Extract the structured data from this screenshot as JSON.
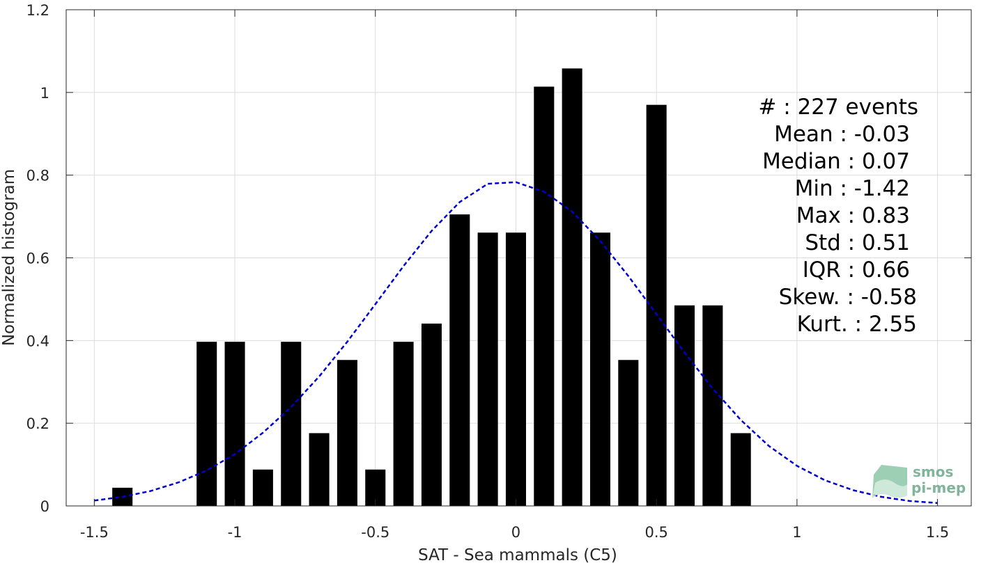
{
  "chart_data": {
    "type": "bar",
    "xlabel": "SAT - Sea mammals (C5)",
    "ylabel": "Normalized histogram",
    "xlim": [
      -1.6,
      1.62
    ],
    "ylim": [
      0,
      1.2
    ],
    "xticks": [
      -1.5,
      -1,
      -0.5,
      0,
      0.5,
      1,
      1.5
    ],
    "xtick_labels": [
      "-1.5",
      "-1",
      "-0.5",
      "0",
      "0.5",
      "1",
      "1.5"
    ],
    "yticks": [
      0,
      0.2,
      0.4,
      0.6,
      0.8,
      1,
      1.2
    ],
    "ytick_labels": [
      "0",
      "0.2",
      "0.4",
      "0.6",
      "0.8",
      "1",
      "1.2"
    ],
    "grid": true,
    "bar_width": 0.072,
    "bars": [
      {
        "x": -1.4,
        "value": 0.044
      },
      {
        "x": -1.1,
        "value": 0.397
      },
      {
        "x": -1.0,
        "value": 0.397
      },
      {
        "x": -0.9,
        "value": 0.088
      },
      {
        "x": -0.8,
        "value": 0.397
      },
      {
        "x": -0.7,
        "value": 0.176
      },
      {
        "x": -0.6,
        "value": 0.353
      },
      {
        "x": -0.5,
        "value": 0.088
      },
      {
        "x": -0.4,
        "value": 0.397
      },
      {
        "x": -0.3,
        "value": 0.441
      },
      {
        "x": -0.2,
        "value": 0.705
      },
      {
        "x": -0.1,
        "value": 0.661
      },
      {
        "x": 0.0,
        "value": 0.661
      },
      {
        "x": 0.1,
        "value": 1.014
      },
      {
        "x": 0.2,
        "value": 1.058
      },
      {
        "x": 0.3,
        "value": 0.661
      },
      {
        "x": 0.4,
        "value": 0.353
      },
      {
        "x": 0.5,
        "value": 0.97
      },
      {
        "x": 0.6,
        "value": 0.485
      },
      {
        "x": 0.7,
        "value": 0.485
      },
      {
        "x": 0.8,
        "value": 0.176
      }
    ],
    "fit_curve": {
      "style": "dashed",
      "color": "#0000cc",
      "x": [
        -1.5,
        -1.4,
        -1.3,
        -1.2,
        -1.1,
        -1.0,
        -0.9,
        -0.8,
        -0.7,
        -0.6,
        -0.5,
        -0.4,
        -0.3,
        -0.2,
        -0.1,
        0.0,
        0.1,
        0.2,
        0.3,
        0.4,
        0.5,
        0.6,
        0.7,
        0.8,
        0.9,
        1.0,
        1.1,
        1.2,
        1.3,
        1.4,
        1.5
      ],
      "y": [
        0.013,
        0.022,
        0.036,
        0.057,
        0.086,
        0.125,
        0.177,
        0.239,
        0.313,
        0.397,
        0.488,
        0.58,
        0.665,
        0.735,
        0.779,
        0.783,
        0.76,
        0.712,
        0.641,
        0.556,
        0.464,
        0.371,
        0.284,
        0.208,
        0.145,
        0.097,
        0.062,
        0.038,
        0.022,
        0.012,
        0.007
      ]
    },
    "bar_color": "#000000"
  },
  "stats": [
    {
      "label": "#  : 227 events",
      "anchor": "end-right"
    },
    {
      "label": "Mean : -0.03",
      "anchor": "end"
    },
    {
      "label": "Median : 0.07",
      "anchor": "end"
    },
    {
      "label": "Min : -1.42",
      "anchor": "end"
    },
    {
      "label": "Max : 0.83",
      "anchor": "end"
    },
    {
      "label": "Std : 0.51",
      "anchor": "end"
    },
    {
      "label": "IQR : 0.66",
      "anchor": "end"
    },
    {
      "label": "Skew. : -0.58",
      "anchor": "end-right"
    },
    {
      "label": "Kurt. : 2.55",
      "anchor": "end-right"
    }
  ],
  "logo": {
    "line1": "smos",
    "line2": "pi-mep",
    "color": "#6aa88a"
  }
}
